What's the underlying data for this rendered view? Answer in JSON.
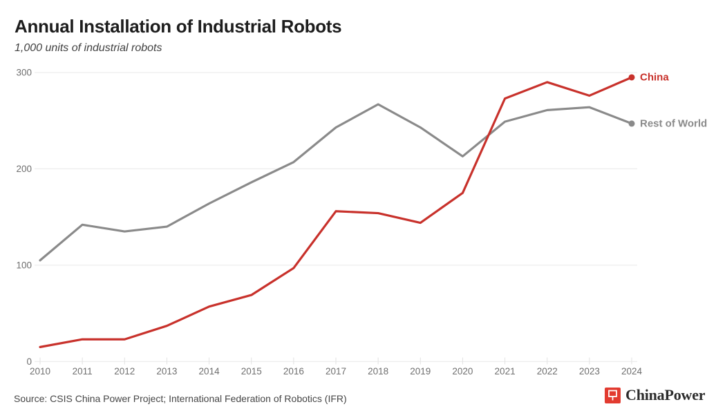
{
  "header": {
    "title": "Annual Installation of Industrial Robots",
    "subtitle": "1,000 units of industrial robots"
  },
  "chart_data": {
    "type": "line",
    "title": "Annual Installation of Industrial Robots",
    "unit_label": "1,000 units of industrial robots",
    "x": [
      2010,
      2011,
      2012,
      2013,
      2014,
      2015,
      2016,
      2017,
      2018,
      2019,
      2020,
      2021,
      2022,
      2023,
      2024
    ],
    "series": [
      {
        "name": "China",
        "color": "#c8312b",
        "values": [
          15,
          23,
          23,
          37,
          57,
          69,
          97,
          156,
          154,
          144,
          175,
          273,
          290,
          276,
          295
        ]
      },
      {
        "name": "Rest of World",
        "color": "#8a8a8a",
        "values": [
          105,
          142,
          135,
          140,
          164,
          186,
          207,
          243,
          267,
          243,
          213,
          249,
          261,
          264,
          247
        ]
      }
    ],
    "ylim": [
      0,
      300
    ],
    "yticks": [
      0,
      100,
      200,
      300
    ],
    "grid": "horizontal",
    "legend_position": "line-end-labels"
  },
  "colors": {
    "grid": "#e8e8e8",
    "tick": "#e2e2e2",
    "axis_text": "#6e6e6e",
    "china": "#c8312b",
    "rest_of_world": "#8a8a8a",
    "logo_red": "#e23b30"
  },
  "footer": {
    "source": "Source: CSIS China Power Project; International Federation of Robotics (IFR)",
    "logo_text": "ChinaPower",
    "logo_icon": "placard-icon"
  }
}
